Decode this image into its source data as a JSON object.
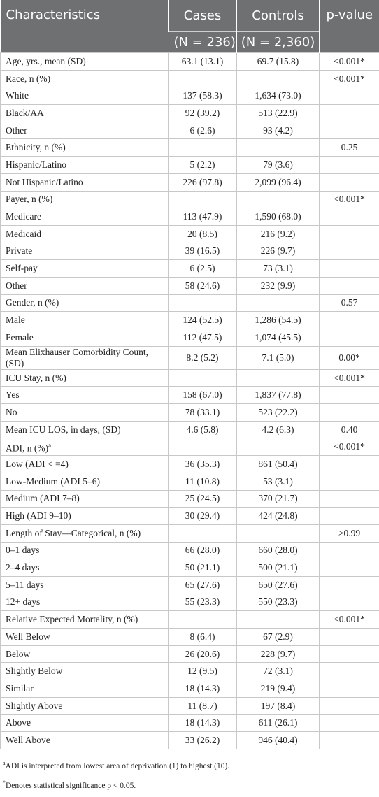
{
  "table": {
    "columns": [
      "Characteristics",
      "Cases",
      "Controls",
      "p-value"
    ],
    "subheaders": [
      "(N = 236)",
      "(N = 2,360)"
    ],
    "rows": [
      [
        "Age, yrs., mean (SD)",
        "63.1 (13.1)",
        "69.7 (15.8)",
        "<0.001*"
      ],
      [
        "Race, n (%)",
        null,
        null,
        "<0.001*"
      ],
      [
        "White",
        "137 (58.3)",
        "1,634 (73.0)",
        null
      ],
      [
        "Black/AA",
        "92 (39.2)",
        "513 (22.9)",
        null
      ],
      [
        "Other",
        "6 (2.6)",
        "93 (4.2)",
        null
      ],
      [
        "Ethnicity, n (%)",
        null,
        null,
        "0.25"
      ],
      [
        "Hispanic/Latino",
        "5 (2.2)",
        "79 (3.6)",
        null
      ],
      [
        "Not Hispanic/Latino",
        "226 (97.8)",
        "2,099 (96.4)",
        null
      ],
      [
        "Payer, n (%)",
        null,
        null,
        "<0.001*"
      ],
      [
        "Medicare",
        "113 (47.9)",
        "1,590 (68.0)",
        null
      ],
      [
        "Medicaid",
        "20 (8.5)",
        "216 (9.2)",
        null
      ],
      [
        "Private",
        "39 (16.5)",
        "226 (9.7)",
        null
      ],
      [
        "Self-pay",
        "6 (2.5)",
        "73 (3.1)",
        null
      ],
      [
        "Other",
        "58 (24.6)",
        "232 (9.9)",
        null
      ],
      [
        "Gender, n (%)",
        null,
        null,
        "0.57"
      ],
      [
        "Male",
        "124 (52.5)",
        "1,286 (54.5)",
        null
      ],
      [
        "Female",
        "112 (47.5)",
        "1,074 (45.5)",
        null
      ],
      [
        "Mean Elixhauser Comorbidity Count, (SD)",
        "8.2 (5.2)",
        "7.1 (5.0)",
        "0.00*"
      ],
      [
        "ICU Stay, n (%)",
        null,
        null,
        "<0.001*"
      ],
      [
        "Yes",
        "158 (67.0)",
        "1,837 (77.8)",
        null
      ],
      [
        "No",
        "78 (33.1)",
        "523 (22.2)",
        null
      ],
      [
        "Mean ICU LOS, in days, (SD)",
        "4.6 (5.8)",
        "4.2 (6.3)",
        "0.40"
      ],
      [
        "ADI, n (%)",
        null,
        null,
        "<0.001*"
      ],
      [
        "Low (ADI < =4)",
        "36 (35.3)",
        "861 (50.4)",
        null
      ],
      [
        "Low-Medium (ADI 5–6)",
        "11 (10.8)",
        "53 (3.1)",
        null
      ],
      [
        "Medium (ADI 7–8)",
        "25 (24.5)",
        "370 (21.7)",
        null
      ],
      [
        "High (ADI 9–10)",
        "30 (29.4)",
        "424 (24.8)",
        null
      ],
      [
        "Length of Stay—Categorical, n (%)",
        null,
        null,
        ">0.99"
      ],
      [
        "0–1 days",
        "66 (28.0)",
        "660 (28.0)",
        null
      ],
      [
        "2–4 days",
        "50 (21.1)",
        "500 (21.1)",
        null
      ],
      [
        "5–11 days",
        "65 (27.6)",
        "650 (27.6)",
        null
      ],
      [
        "12+ days",
        "55 (23.3)",
        "550 (23.3)",
        null
      ],
      [
        "Relative Expected Mortality, n (%)",
        null,
        null,
        "<0.001*"
      ],
      [
        "Well Below",
        "8 (6.4)",
        "67 (2.9)",
        null
      ],
      [
        "Below",
        "26 (20.6)",
        "228 (9.7)",
        null
      ],
      [
        "Slightly Below",
        "12 (9.5)",
        "72 (3.1)",
        null
      ],
      [
        "Similar",
        "18 (14.3)",
        "219 (9.4)",
        null
      ],
      [
        "Slightly Above",
        "11 (8.7)",
        "197 (8.4)",
        null
      ],
      [
        "Above",
        "18 (14.3)",
        "611 (26.1)",
        null
      ],
      [
        "Well Above",
        "33 (26.2)",
        "946 (40.4)",
        null
      ]
    ],
    "row_markers": {
      "22": "a"
    }
  },
  "footnotes": [
    {
      "marker": "a",
      "text": "ADI is interpreted from lowest area of deprivation (1) to highest (10)."
    },
    {
      "marker": "*",
      "text": "Denotes statistical significance p < 0.05."
    }
  ]
}
